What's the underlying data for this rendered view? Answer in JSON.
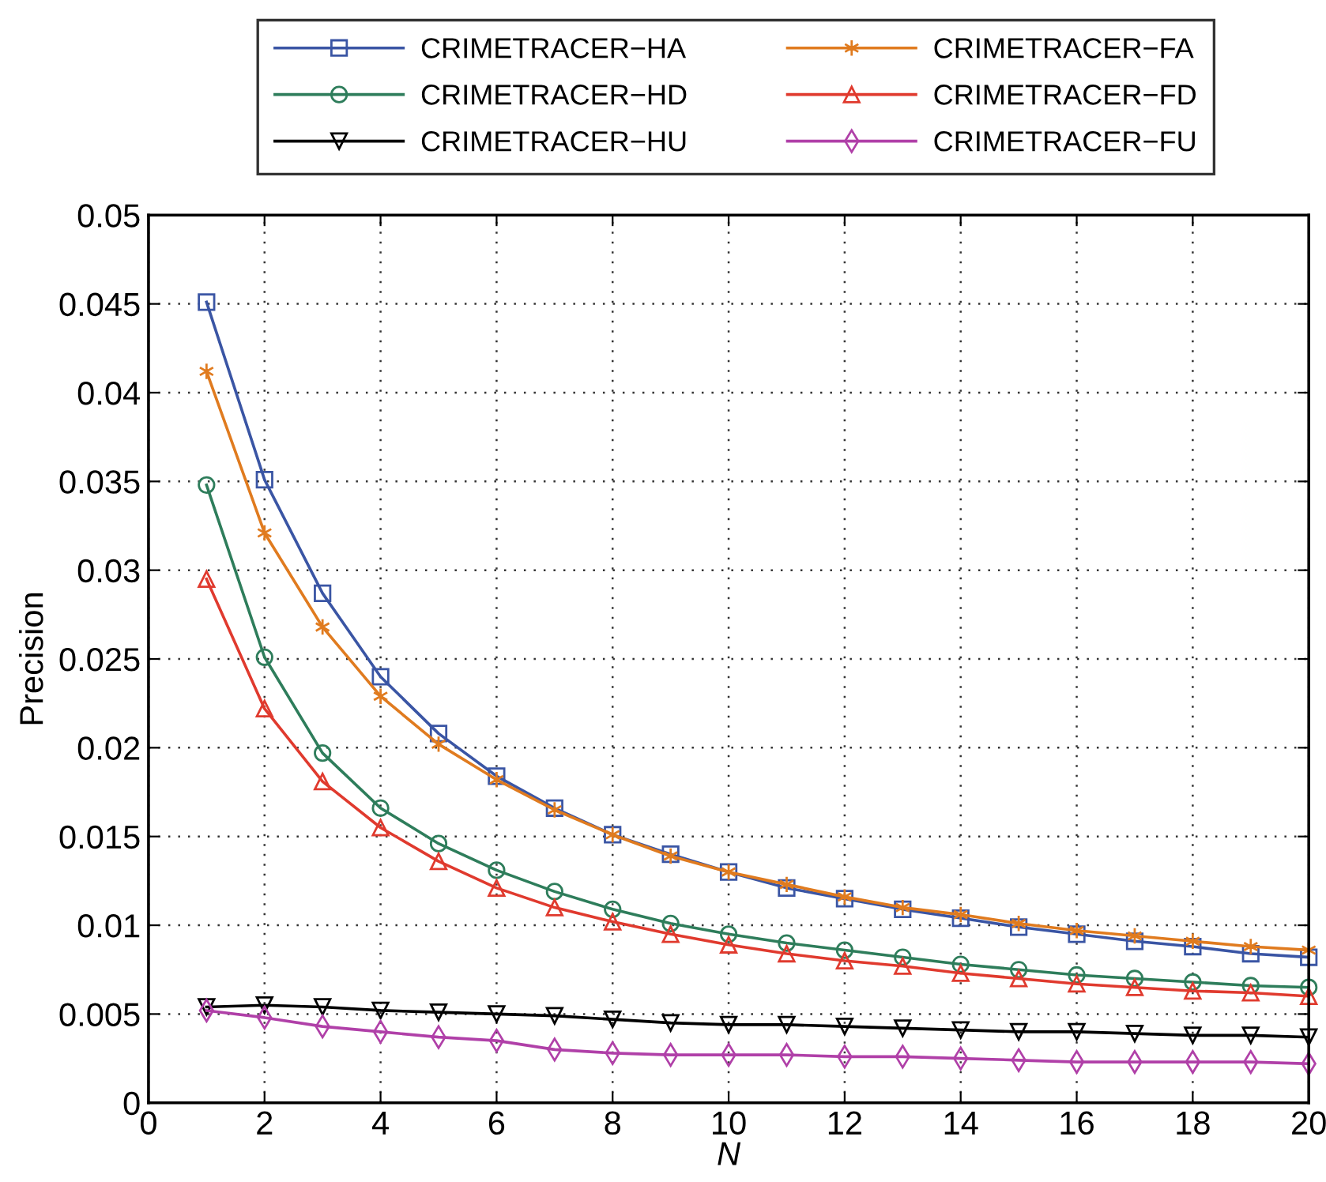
{
  "chart_data": {
    "type": "line",
    "xlabel": "N",
    "ylabel": "Precision",
    "x": [
      1,
      2,
      3,
      4,
      5,
      6,
      7,
      8,
      9,
      10,
      11,
      12,
      13,
      14,
      15,
      16,
      17,
      18,
      19,
      20
    ],
    "series": [
      {
        "name": "CRIMETRACER−HA",
        "color": "#3a55a4",
        "marker": "square",
        "values": [
          0.0451,
          0.0351,
          0.0287,
          0.024,
          0.0208,
          0.0184,
          0.0166,
          0.0151,
          0.014,
          0.013,
          0.0121,
          0.0115,
          0.0109,
          0.0104,
          0.0099,
          0.0095,
          0.0091,
          0.0088,
          0.0084,
          0.0082
        ]
      },
      {
        "name": "CRIMETRACER−HD",
        "color": "#2e7d5b",
        "marker": "circle",
        "values": [
          0.0348,
          0.0251,
          0.0197,
          0.0166,
          0.0146,
          0.0131,
          0.0119,
          0.0109,
          0.0101,
          0.0095,
          0.009,
          0.0086,
          0.0082,
          0.0078,
          0.0075,
          0.0072,
          0.007,
          0.0068,
          0.0066,
          0.0065
        ]
      },
      {
        "name": "CRIMETRACER−HU",
        "color": "#000000",
        "marker": "triangle_down",
        "values": [
          0.0054,
          0.0055,
          0.0054,
          0.0052,
          0.0051,
          0.005,
          0.0049,
          0.0047,
          0.0045,
          0.0044,
          0.0044,
          0.0043,
          0.0042,
          0.0041,
          0.004,
          0.004,
          0.0039,
          0.0038,
          0.0038,
          0.0037
        ]
      },
      {
        "name": "CRIMETRACER−FA",
        "color": "#e07b1f",
        "marker": "cross",
        "values": [
          0.0412,
          0.0321,
          0.0268,
          0.0229,
          0.0202,
          0.0182,
          0.0165,
          0.0151,
          0.0139,
          0.013,
          0.0123,
          0.0116,
          0.011,
          0.0106,
          0.0101,
          0.0097,
          0.0094,
          0.0091,
          0.0088,
          0.0086
        ]
      },
      {
        "name": "CRIMETRACER−FD",
        "color": "#e03a2e",
        "marker": "triangle",
        "values": [
          0.0295,
          0.0222,
          0.0181,
          0.0155,
          0.0136,
          0.0121,
          0.011,
          0.0102,
          0.0095,
          0.0089,
          0.0084,
          0.008,
          0.0077,
          0.0073,
          0.007,
          0.0067,
          0.0065,
          0.0063,
          0.0062,
          0.006
        ]
      },
      {
        "name": "CRIMETRACER−FU",
        "color": "#b040a8",
        "marker": "diamond",
        "values": [
          0.0052,
          0.0048,
          0.0043,
          0.004,
          0.0037,
          0.0035,
          0.003,
          0.0028,
          0.0027,
          0.0027,
          0.0027,
          0.0026,
          0.0026,
          0.0025,
          0.0024,
          0.0023,
          0.0023,
          0.0023,
          0.0023,
          0.0022
        ]
      }
    ],
    "xlim": [
      0,
      20
    ],
    "xticks": [
      0,
      2,
      4,
      6,
      8,
      10,
      12,
      14,
      16,
      18,
      20
    ],
    "ylim": [
      0,
      0.05
    ],
    "yticks": [
      0,
      0.005,
      0.01,
      0.015,
      0.02,
      0.025,
      0.03,
      0.035,
      0.04,
      0.045,
      0.05
    ],
    "grid": true,
    "legend": "top",
    "line_style": "solid"
  }
}
